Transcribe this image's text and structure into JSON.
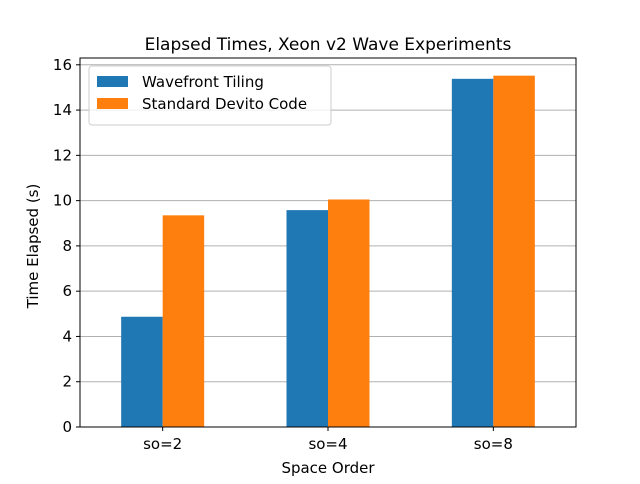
{
  "chart_data": {
    "type": "bar",
    "title": "Elapsed Times, Xeon v2 Wave Experiments",
    "xlabel": "Space Order",
    "ylabel": "Time Elapsed (s)",
    "categories": [
      "so=2",
      "so=4",
      "so=8"
    ],
    "series": [
      {
        "name": "Wavefront Tiling",
        "values": [
          4.87,
          9.58,
          15.38
        ],
        "color": "#1f77b4"
      },
      {
        "name": "Standard Devito Code",
        "values": [
          9.35,
          10.05,
          15.52
        ],
        "color": "#ff7f0e"
      }
    ],
    "ylim": [
      0,
      16.3
    ],
    "yticks": [
      0,
      2,
      4,
      6,
      8,
      10,
      12,
      14,
      16
    ],
    "grid": "horizontal",
    "legend_position": "top-left"
  }
}
